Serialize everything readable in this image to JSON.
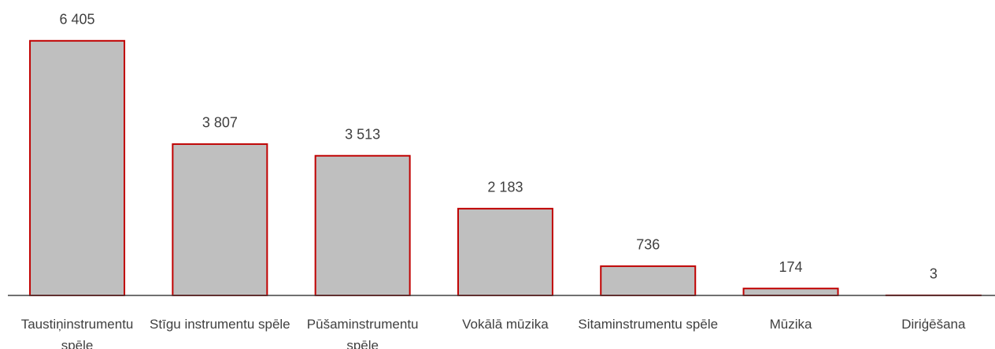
{
  "chart_data": {
    "type": "bar",
    "categories": [
      "Taustiņinstrumentu spēle",
      "Stīgu instrumentu spēle",
      "Pūšaminstrumentu spēle",
      "Vokālā mūzika",
      "Sitaminstrumentu spēle",
      "Mūzika",
      "Diriģēšana"
    ],
    "values": [
      6405,
      3807,
      3513,
      2183,
      736,
      174,
      3
    ],
    "value_labels": [
      "6 405",
      "3 807",
      "3 513",
      "2 183",
      "736",
      "174",
      "3"
    ],
    "color": "#bfbfbf",
    "edge_color": "#c00000",
    "ylim": [
      0,
      6500
    ]
  }
}
